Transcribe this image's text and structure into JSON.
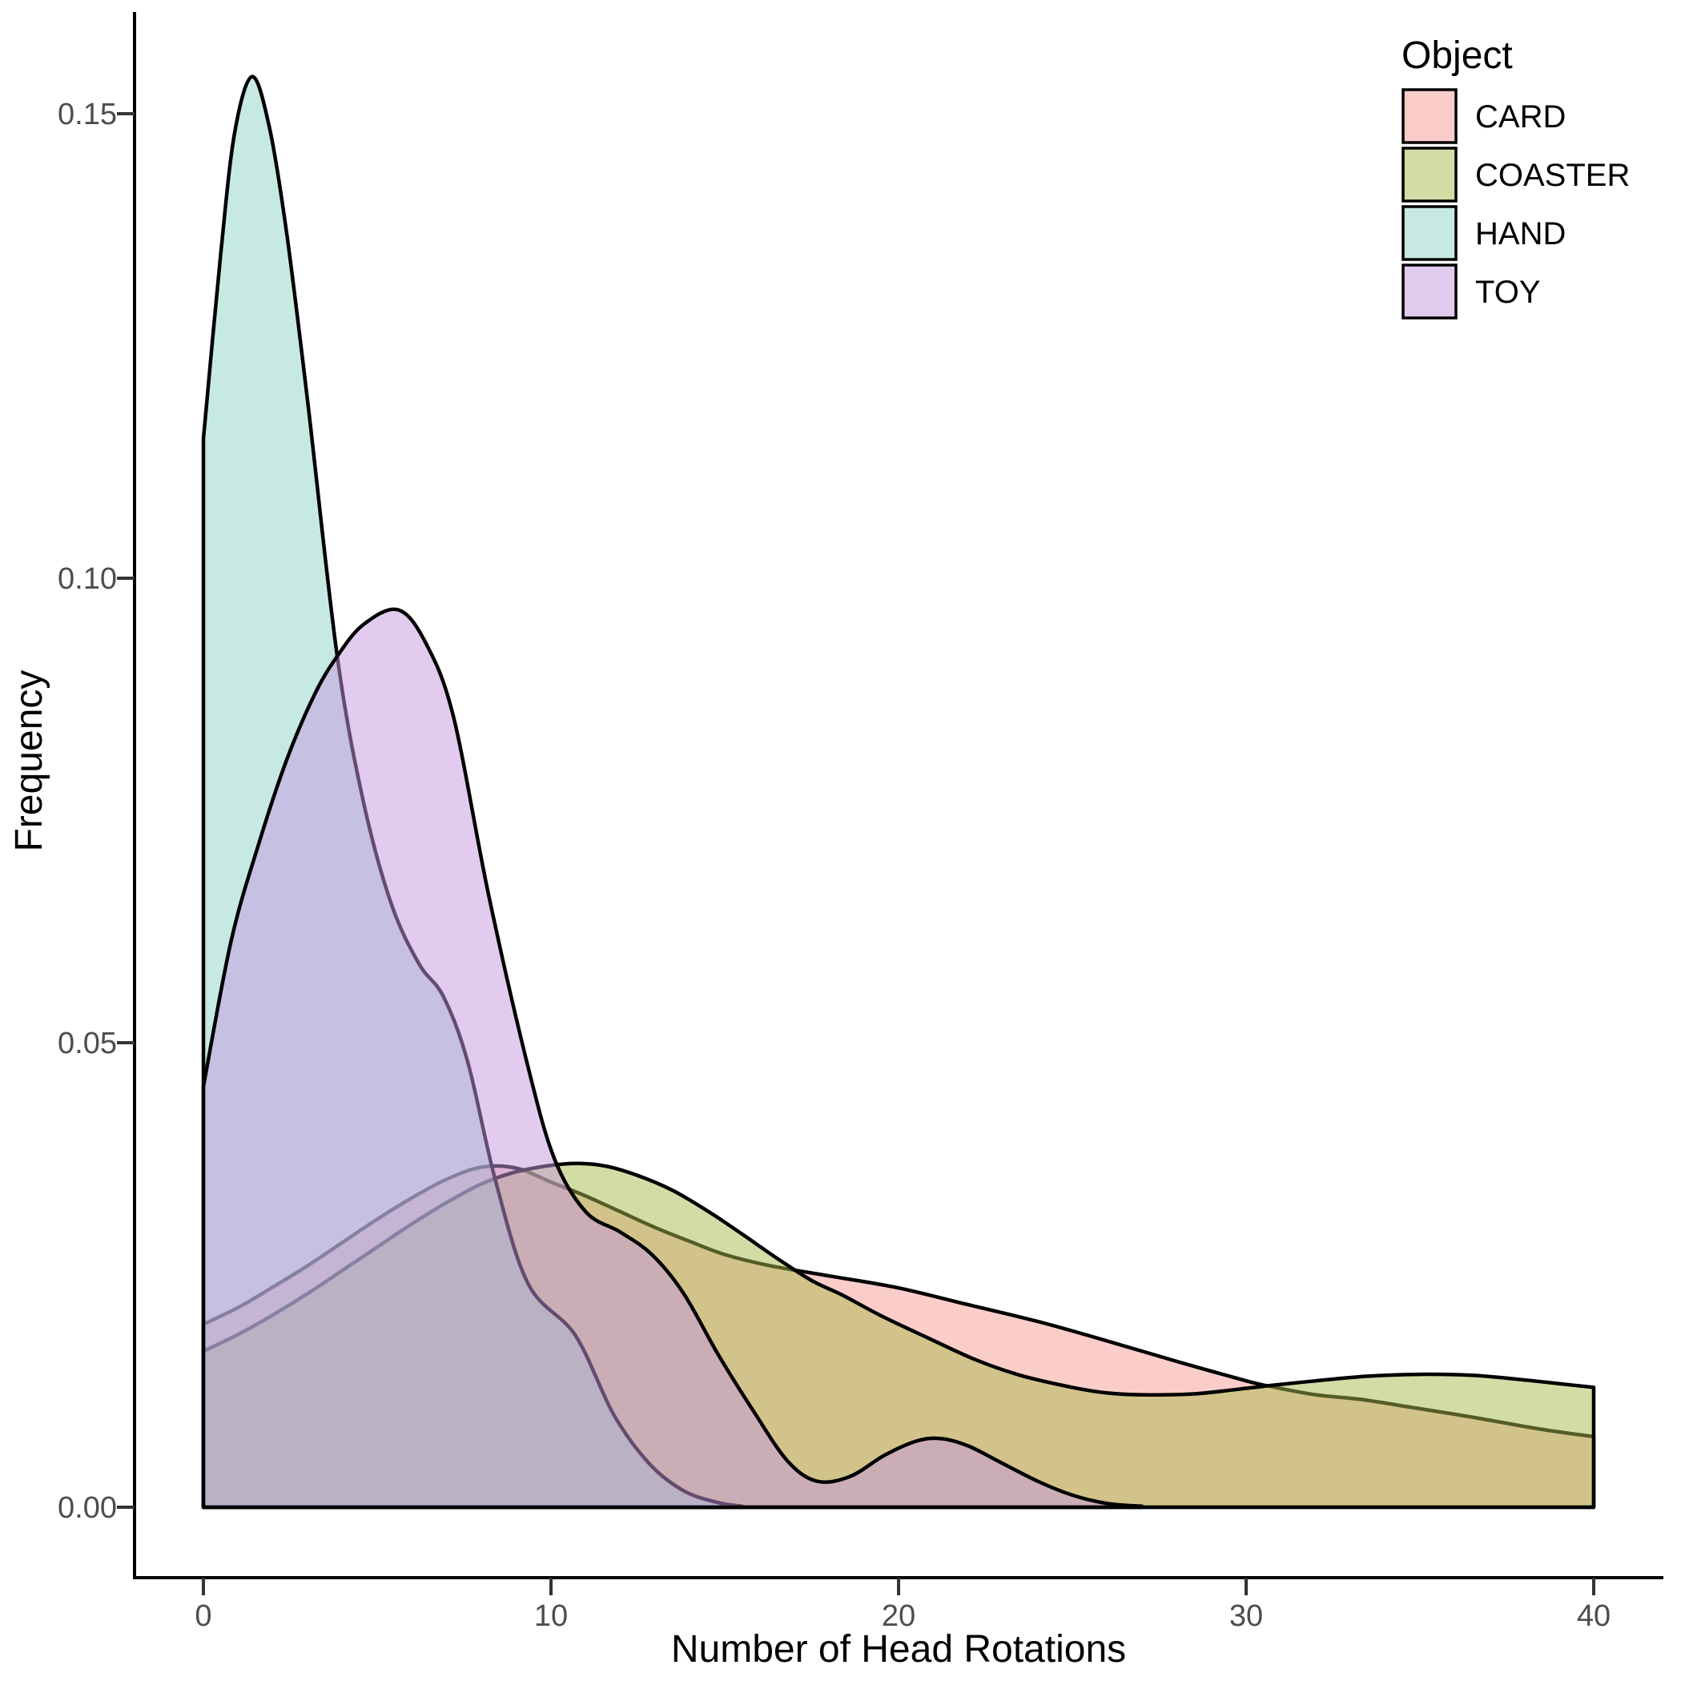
{
  "axes": {
    "x": {
      "label": "Number of Head Rotations",
      "ticks": [
        "0",
        "10",
        "20",
        "30",
        "40"
      ],
      "range": [
        0,
        40
      ]
    },
    "y": {
      "label": "Frequency",
      "ticks": [
        "0.00",
        "0.05",
        "0.10",
        "0.15"
      ],
      "range": [
        0,
        0.16
      ]
    }
  },
  "legend": {
    "title": "Object",
    "items": [
      {
        "label": "CARD",
        "color": "#F79B93"
      },
      {
        "label": "COASTER",
        "color": "#A7B94B"
      },
      {
        "label": "HAND",
        "color": "#8DD3C9"
      },
      {
        "label": "TOY",
        "color": "#C597DF"
      }
    ]
  },
  "chart_data": {
    "type": "area",
    "subtype": "density",
    "title": "",
    "xlabel": "Number of Head Rotations",
    "ylabel": "Frequency",
    "xlim": [
      0,
      40
    ],
    "ylim": [
      0,
      0.16
    ],
    "grid": false,
    "legend_position": "top-right",
    "stroke_color": "#000000",
    "fill_opacity": 0.5,
    "series": [
      {
        "name": "CARD",
        "color": "#F79B93",
        "points": [
          [
            0,
            0.0197
          ],
          [
            1,
            0.0215
          ],
          [
            2,
            0.0237
          ],
          [
            3,
            0.026
          ],
          [
            4,
            0.0285
          ],
          [
            5,
            0.031
          ],
          [
            6,
            0.0333
          ],
          [
            7,
            0.0353
          ],
          [
            8,
            0.0366
          ],
          [
            9,
            0.0365
          ],
          [
            10,
            0.035
          ],
          [
            11,
            0.0335
          ],
          [
            12,
            0.0318
          ],
          [
            13,
            0.0301
          ],
          [
            14,
            0.0286
          ],
          [
            15,
            0.0272
          ],
          [
            16.3,
            0.026
          ],
          [
            18,
            0.0249
          ],
          [
            20,
            0.0236
          ],
          [
            22,
            0.0218
          ],
          [
            24,
            0.02
          ],
          [
            26,
            0.0179
          ],
          [
            28,
            0.0157
          ],
          [
            30,
            0.0136
          ],
          [
            30.7,
            0.013
          ],
          [
            32,
            0.0121
          ],
          [
            33.3,
            0.0116
          ],
          [
            35,
            0.0106
          ],
          [
            36.5,
            0.0097
          ],
          [
            38,
            0.0087
          ],
          [
            39,
            0.0081
          ],
          [
            40,
            0.0076
          ]
        ]
      },
      {
        "name": "COASTER",
        "color": "#A7B94B",
        "points": [
          [
            0,
            0.0168
          ],
          [
            1,
            0.0186
          ],
          [
            2,
            0.0207
          ],
          [
            3,
            0.023
          ],
          [
            4,
            0.0255
          ],
          [
            5,
            0.028
          ],
          [
            6,
            0.0305
          ],
          [
            7,
            0.0328
          ],
          [
            8,
            0.0348
          ],
          [
            9,
            0.0361
          ],
          [
            10,
            0.0368
          ],
          [
            10.8,
            0.037
          ],
          [
            11.6,
            0.0367
          ],
          [
            12.5,
            0.0357
          ],
          [
            13.5,
            0.0341
          ],
          [
            14.5,
            0.0319
          ],
          [
            15.5,
            0.0294
          ],
          [
            16.5,
            0.0268
          ],
          [
            17.5,
            0.0244
          ],
          [
            18.4,
            0.0228
          ],
          [
            19.5,
            0.0206
          ],
          [
            20.8,
            0.0183
          ],
          [
            22.2,
            0.0159
          ],
          [
            23.5,
            0.0142
          ],
          [
            25,
            0.0129
          ],
          [
            26,
            0.0123
          ],
          [
            27,
            0.0121
          ],
          [
            28.5,
            0.0122
          ],
          [
            30,
            0.0128
          ],
          [
            30.7,
            0.0131
          ],
          [
            32,
            0.0136
          ],
          [
            33.5,
            0.0141
          ],
          [
            35,
            0.0143
          ],
          [
            36.5,
            0.0142
          ],
          [
            38,
            0.0137
          ],
          [
            39,
            0.0133
          ],
          [
            40,
            0.0129
          ]
        ]
      },
      {
        "name": "HAND",
        "color": "#8DD3C9",
        "points": [
          [
            0,
            0.115
          ],
          [
            0.5,
            0.135
          ],
          [
            0.9,
            0.148
          ],
          [
            1.4,
            0.154
          ],
          [
            1.9,
            0.1485
          ],
          [
            2.4,
            0.137
          ],
          [
            3.0,
            0.119
          ],
          [
            3.85,
            0.0916
          ],
          [
            4.6,
            0.076
          ],
          [
            5.4,
            0.065
          ],
          [
            6.2,
            0.0585
          ],
          [
            6.9,
            0.055
          ],
          [
            7.6,
            0.048
          ],
          [
            8.4,
            0.0352
          ],
          [
            9.35,
            0.024
          ],
          [
            10.7,
            0.0185
          ],
          [
            11.8,
            0.01
          ],
          [
            12.8,
            0.0048
          ],
          [
            13.8,
            0.0018
          ],
          [
            14.8,
            0.0005
          ],
          [
            15.5,
            0.0001
          ]
        ]
      },
      {
        "name": "TOY",
        "color": "#C597DF",
        "points": [
          [
            0,
            0.0453
          ],
          [
            0.8,
            0.061
          ],
          [
            1.6,
            0.0715
          ],
          [
            2.4,
            0.0805
          ],
          [
            3.2,
            0.0875
          ],
          [
            3.85,
            0.0916
          ],
          [
            4.6,
            0.095
          ],
          [
            5.6,
            0.0966
          ],
          [
            6.4,
            0.093
          ],
          [
            7.2,
            0.085
          ],
          [
            8.2,
            0.066
          ],
          [
            9.3,
            0.048
          ],
          [
            10.1,
            0.0375
          ],
          [
            11,
            0.0318
          ],
          [
            12,
            0.0296
          ],
          [
            12.9,
            0.0272
          ],
          [
            13.8,
            0.0231
          ],
          [
            14.8,
            0.0165
          ],
          [
            15.8,
            0.0105
          ],
          [
            16.8,
            0.005
          ],
          [
            17.65,
            0.0028
          ],
          [
            18.6,
            0.0033
          ],
          [
            19.6,
            0.0056
          ],
          [
            20.5,
            0.0071
          ],
          [
            21.2,
            0.0074
          ],
          [
            22,
            0.0066
          ],
          [
            23,
            0.0047
          ],
          [
            24,
            0.0028
          ],
          [
            25,
            0.0013
          ],
          [
            26,
            0.0004
          ],
          [
            27,
            0.0001
          ]
        ]
      }
    ]
  }
}
